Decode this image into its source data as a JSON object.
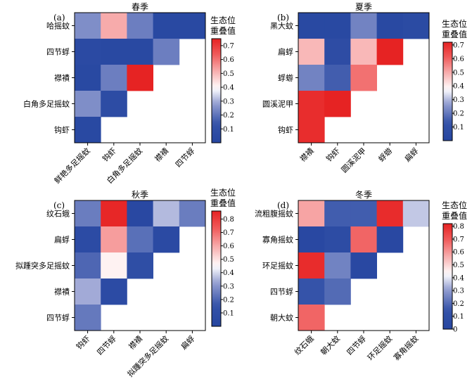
{
  "chart_data": [
    {
      "type": "heatmap",
      "panel_label": "(a)",
      "title": "春季",
      "rows": [
        "哈摇蚊",
        "四节蜉",
        "襟襀",
        "白角多足摇蚊",
        "钩虾"
      ],
      "columns": [
        "鲜艳多足摇蚊",
        "钩虾",
        "白角多足摇蚊",
        "襟襀",
        "四节蜉"
      ],
      "values": [
        [
          0.25,
          0.52,
          0.22,
          0.03,
          0.03
        ],
        [
          0.05,
          0.03,
          0.03,
          0.22,
          null
        ],
        [
          0.03,
          0.22,
          0.75,
          null,
          null
        ],
        [
          0.25,
          0.07,
          null,
          null,
          null
        ],
        [
          0.03,
          null,
          null,
          null,
          null
        ]
      ],
      "colorbar": {
        "title": "生态位重叠值",
        "min": 0.0,
        "max": 0.75,
        "ticks": [
          "0.1",
          "0.2",
          "0.3",
          "0.4",
          "0.5",
          "0.6",
          "0.7"
        ]
      }
    },
    {
      "type": "heatmap",
      "panel_label": "(b)",
      "title": "夏季",
      "rows": [
        "黑大蚊",
        "扁蜉",
        "蜉蝣",
        "圆溪泥甲",
        "钩虾"
      ],
      "columns": [
        "襟襀",
        "钩虾",
        "圆溪泥甲",
        "蜉蝣",
        "扁蜉"
      ],
      "values": [
        [
          0.03,
          0.03,
          0.22,
          0.03,
          0.05
        ],
        [
          0.48,
          0.07,
          0.48,
          0.72,
          null
        ],
        [
          0.22,
          0.15,
          0.58,
          null,
          null
        ],
        [
          0.7,
          0.72,
          null,
          null,
          null
        ],
        [
          0.7,
          null,
          null,
          null,
          null
        ]
      ],
      "colorbar": {
        "title": "生态位重叠值",
        "min": 0.0,
        "max": 0.72,
        "ticks": [
          "0.1",
          "0.2",
          "0.3",
          "0.4",
          "0.5",
          "0.6",
          "0.7"
        ]
      }
    },
    {
      "type": "heatmap",
      "panel_label": "(c)",
      "title": "秋季",
      "rows": [
        "纹石蛾",
        "扁蜉",
        "拟踵突多足摇蚊",
        "襟襀",
        "四节蜉"
      ],
      "columns": [
        "钩虾",
        "四节蜉",
        "襟襀",
        "拟踵突多足摇蚊",
        "扁蜉"
      ],
      "values": [
        [
          0.25,
          0.85,
          0.03,
          0.36,
          0.25
        ],
        [
          0.07,
          0.62,
          0.22,
          0.05,
          null
        ],
        [
          0.2,
          0.47,
          0.1,
          null,
          null
        ],
        [
          0.34,
          0.07,
          null,
          null,
          null
        ],
        [
          0.24,
          null,
          null,
          null,
          null
        ]
      ],
      "colorbar": {
        "title": "生态位重叠值",
        "min": 0.0,
        "max": 0.86,
        "ticks": [
          "0.1",
          "0.2",
          "0.3",
          "0.4",
          "0.5",
          "0.6",
          "0.7",
          "0.8"
        ]
      }
    },
    {
      "type": "heatmap",
      "panel_label": "(d)",
      "title": "冬季",
      "rows": [
        "流粗腹摇蚊",
        "寡角摇蚊",
        "环足摇蚊",
        "四节蜉",
        "朝大蚊"
      ],
      "columns": [
        "纹石蛾",
        "朝大蚊",
        "四节蜉",
        "环足摇蚊",
        "寡角摇蚊"
      ],
      "values": [
        [
          0.58,
          0.17,
          0.17,
          0.8,
          0.36
        ],
        [
          0.03,
          0.07,
          0.68,
          0.03,
          null
        ],
        [
          0.8,
          0.25,
          0.03,
          null,
          null
        ],
        [
          0.15,
          0.2,
          null,
          null,
          null
        ],
        [
          0.68,
          null,
          null,
          null,
          null
        ]
      ],
      "colorbar": {
        "title": "生态位重叠值",
        "min": 0.0,
        "max": 0.82,
        "ticks": [
          "0",
          "0.1",
          "0.2",
          "0.3",
          "0.4",
          "0.5",
          "0.6",
          "0.7",
          "0.8"
        ]
      }
    }
  ]
}
